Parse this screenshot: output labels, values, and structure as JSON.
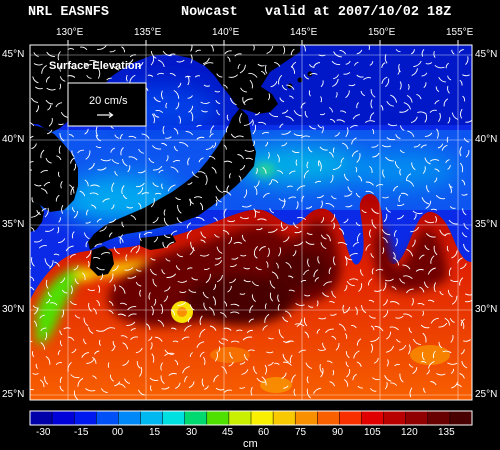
{
  "header": {
    "model": "NRL EASNFS",
    "product": "Nowcast",
    "valid": "valid at 2007/10/02 18Z"
  },
  "map": {
    "lon_labels": [
      "130°E",
      "135°E",
      "140°E",
      "145°E",
      "150°E",
      "155°E"
    ],
    "lat_labels": [
      "45°N",
      "40°N",
      "35°N",
      "30°N",
      "25°N"
    ],
    "field_label": "Surface Elevation",
    "vector_scale_label": "20 cm/s"
  },
  "colorbar": {
    "tick_labels": [
      "-30",
      "-15",
      "00",
      "15",
      "30",
      "45",
      "60",
      "75",
      "90",
      "105",
      "120",
      "135"
    ],
    "units": "cm",
    "colors": [
      "#0000a8",
      "#0000d8",
      "#0018f0",
      "#0050f8",
      "#0088f8",
      "#00b8f0",
      "#00e0e0",
      "#00d870",
      "#50e000",
      "#c8f000",
      "#f8f000",
      "#f8c800",
      "#f89000",
      "#f86000",
      "#f83000",
      "#e00000",
      "#b80000",
      "#900000",
      "#680000",
      "#480000"
    ]
  }
}
